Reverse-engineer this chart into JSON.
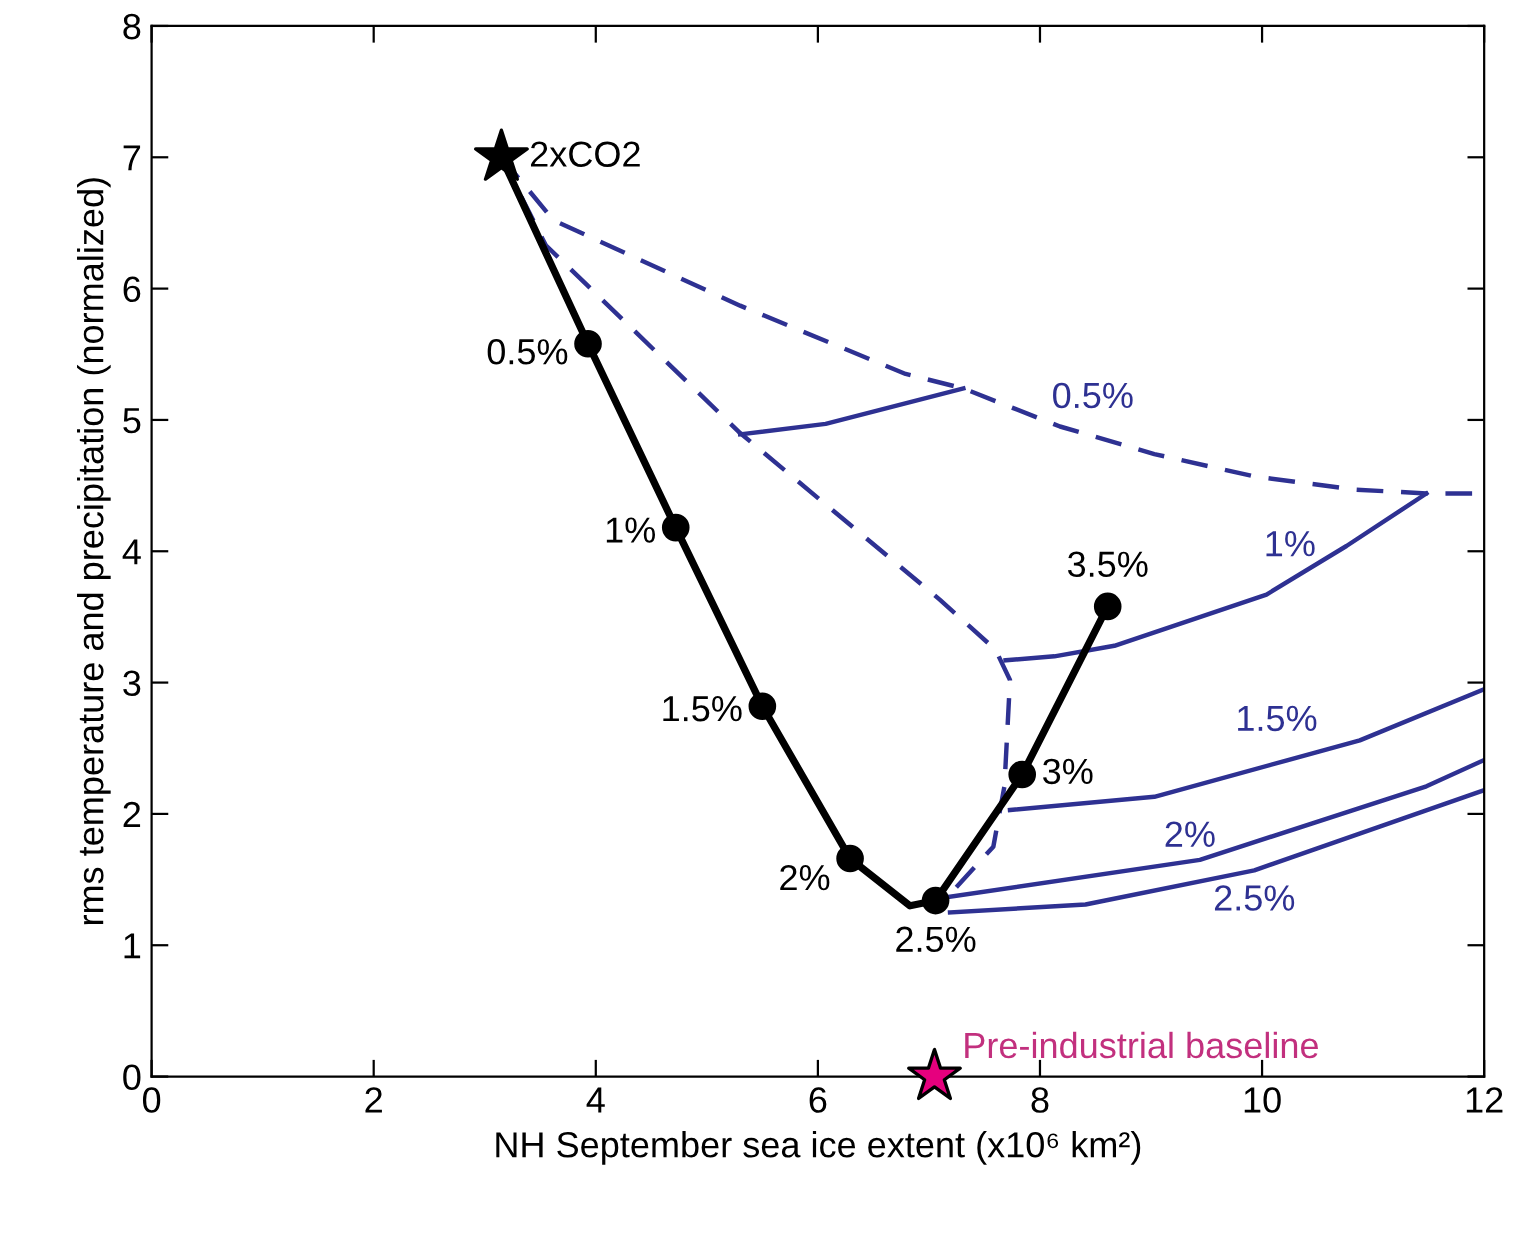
{
  "chart_data": {
    "type": "line",
    "xlabel": "NH September sea ice extent (x10⁶ km²)",
    "ylabel": "rms temperature and precipitation (normalized)",
    "xlim": [
      0,
      12
    ],
    "ylim": [
      0,
      8
    ],
    "xticks": [
      0,
      2,
      4,
      6,
      8,
      10,
      12
    ],
    "yticks": [
      0,
      1,
      2,
      3,
      4,
      5,
      6,
      7,
      8
    ],
    "grid": false,
    "legend": false,
    "series": [
      {
        "color": "#2e3192",
        "line_style": "dashed",
        "marker": "none",
        "x": [
          3.15,
          3.62,
          5.3,
          6.79,
          7.31,
          8.18,
          9.03,
          9.93,
          10.83,
          11.48,
          12
        ],
        "values": [
          7.0,
          6.52,
          5.87,
          5.35,
          5.24,
          4.95,
          4.74,
          4.57,
          4.47,
          4.44,
          4.44
        ]
      },
      {
        "color": "#2e3192",
        "line_style": "dashed",
        "marker": "none",
        "x": [
          3.15,
          3.55,
          5.3,
          7.1,
          7.6,
          7.73,
          7.68,
          7.58,
          7.19
        ],
        "values": [
          7.0,
          6.33,
          4.9,
          3.63,
          3.25,
          3.02,
          2.21,
          1.75,
          1.39
        ]
      },
      {
        "color": "#2e3192",
        "line_style": "solid",
        "marker": "none",
        "x": [
          5.3,
          6.07,
          7.31
        ],
        "values": [
          4.89,
          4.97,
          5.24
        ]
      },
      {
        "color": "#2e3192",
        "line_style": "solid",
        "marker": "none",
        "x": [
          7.69,
          8.13,
          8.67,
          10.04,
          10.76,
          11.48
        ],
        "values": [
          3.17,
          3.2,
          3.28,
          3.67,
          4.04,
          4.44
        ]
      },
      {
        "color": "#2e3192",
        "line_style": "solid",
        "marker": "none",
        "x": [
          7.73,
          9.03,
          10.88,
          12
        ],
        "values": [
          2.03,
          2.13,
          2.56,
          2.95
        ]
      },
      {
        "color": "#2e3192",
        "line_style": "solid",
        "marker": "none",
        "x": [
          7.19,
          9.44,
          11.48,
          12
        ],
        "values": [
          1.37,
          1.65,
          2.21,
          2.41
        ]
      },
      {
        "color": "#2e3192",
        "line_style": "solid",
        "marker": "none",
        "x": [
          7.19,
          8.41,
          9.93,
          12
        ],
        "values": [
          1.25,
          1.31,
          1.57,
          2.18
        ]
      },
      {
        "color": "#000000",
        "line_style": "solid",
        "marker": "none",
        "x": [
          3.15,
          3.93,
          4.72,
          5.5,
          6.29,
          6.83,
          7.06,
          7.84,
          8.61
        ],
        "values": [
          7.0,
          5.58,
          4.18,
          2.82,
          1.66,
          1.3,
          1.34,
          2.3,
          3.58
        ]
      },
      {
        "type": "scatter",
        "color": "#000000",
        "marker": "circle",
        "x": [
          3.93,
          4.72,
          5.5,
          6.29,
          7.06,
          7.84,
          8.61
        ],
        "values": [
          5.58,
          4.18,
          2.82,
          1.66,
          1.34,
          2.3,
          3.58
        ]
      },
      {
        "type": "scatter",
        "color": "#000000",
        "marker": "star",
        "x": [
          3.15
        ],
        "values": [
          7.0
        ]
      },
      {
        "type": "scatter",
        "color": "#e6007e",
        "marker": "star",
        "x": [
          7.05
        ],
        "values": [
          0.0
        ]
      }
    ],
    "annotations": [
      {
        "text": "2xCO2",
        "x": 3.15,
        "y": 7.0
      },
      {
        "text": "0.5%",
        "x": 3.93,
        "y": 5.58
      },
      {
        "text": "1%",
        "x": 4.72,
        "y": 4.18
      },
      {
        "text": "1.5%",
        "x": 5.5,
        "y": 2.82
      },
      {
        "text": "2%",
        "x": 6.29,
        "y": 1.66
      },
      {
        "text": "2.5%",
        "x": 7.06,
        "y": 1.34
      },
      {
        "text": "3%",
        "x": 7.84,
        "y": 2.3
      },
      {
        "text": "3.5%",
        "x": 8.61,
        "y": 3.58
      },
      {
        "text": "Pre-industrial baseline",
        "x": 7.05,
        "y": 0.0
      },
      {
        "text": "0.5%",
        "x": 8.18,
        "y": 4.95
      },
      {
        "text": "1%",
        "x": 10.25,
        "y": 3.8
      },
      {
        "text": "1.5%",
        "x": 10.13,
        "y": 2.47
      },
      {
        "text": "2%",
        "x": 9.35,
        "y": 1.63
      },
      {
        "text": "2.5%",
        "x": 9.93,
        "y": 1.57
      }
    ]
  }
}
